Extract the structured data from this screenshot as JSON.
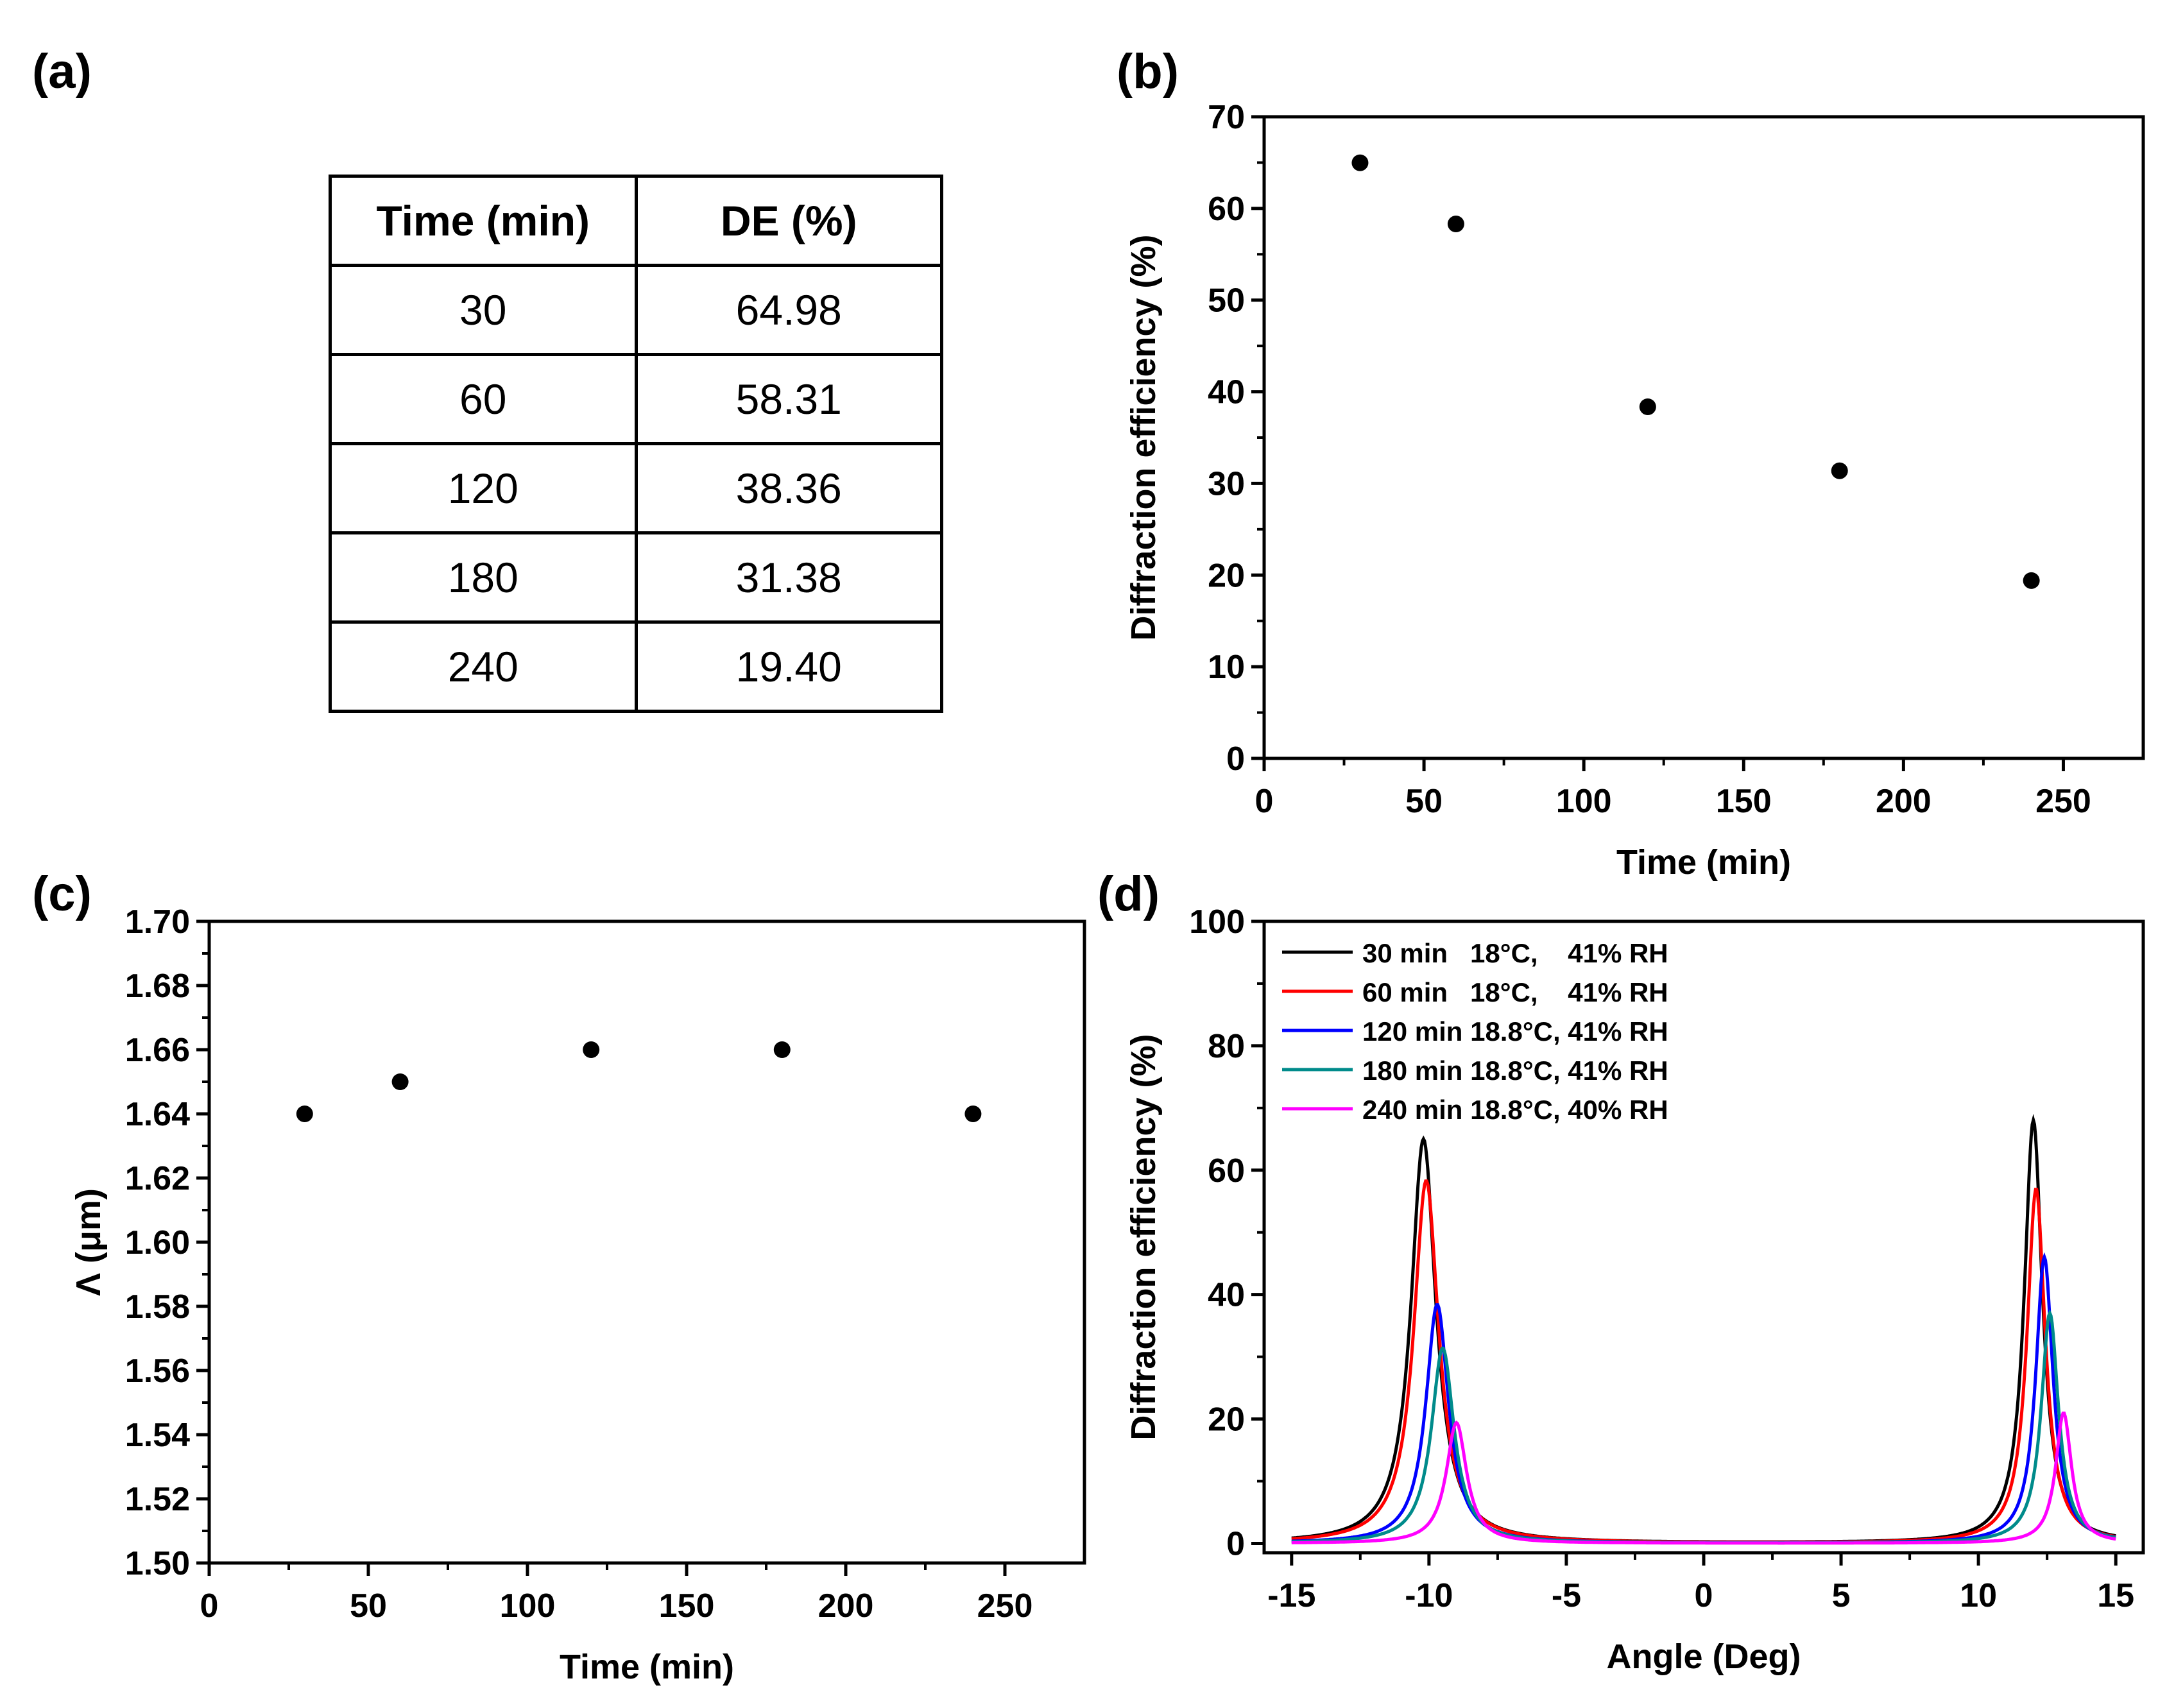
{
  "panel_labels": {
    "a": "(a)",
    "b": "(b)",
    "c": "(c)",
    "d": "(d)"
  },
  "table": {
    "headers": [
      "Time (min)",
      "DE (%)"
    ],
    "rows": [
      [
        "30",
        "64.98"
      ],
      [
        "60",
        "58.31"
      ],
      [
        "120",
        "38.36"
      ],
      [
        "180",
        "31.38"
      ],
      [
        "240",
        "19.40"
      ]
    ]
  },
  "chart_data": [
    {
      "panel": "(b)",
      "type": "scatter",
      "title": "",
      "xlabel": "Time (min)",
      "ylabel": "Diffraction efficiency (%)",
      "xlim": [
        0,
        275
      ],
      "ylim": [
        0,
        70
      ],
      "xticks": [
        0,
        50,
        100,
        150,
        200,
        250
      ],
      "yticks": [
        0,
        10,
        20,
        30,
        40,
        50,
        60,
        70
      ],
      "x": [
        30,
        60,
        120,
        180,
        240
      ],
      "y": [
        64.98,
        58.31,
        38.36,
        31.38,
        19.4
      ],
      "marker_color": "#000000"
    },
    {
      "panel": "(c)",
      "type": "scatter",
      "title": "",
      "xlabel": "Time (min)",
      "ylabel": "Λ (μm)",
      "xlim": [
        0,
        275
      ],
      "ylim": [
        1.5,
        1.7
      ],
      "xticks": [
        0,
        50,
        100,
        150,
        200,
        250
      ],
      "yticks": [
        "1.50",
        "1.52",
        "1.54",
        "1.56",
        "1.58",
        "1.60",
        "1.62",
        "1.64",
        "1.66",
        "1.68",
        "1.70"
      ],
      "x": [
        30,
        60,
        120,
        180,
        240
      ],
      "y": [
        1.64,
        1.65,
        1.66,
        1.66,
        1.64
      ],
      "marker_color": "#000000"
    },
    {
      "panel": "(d)",
      "type": "line",
      "title": "",
      "xlabel": "Angle (Deg)",
      "ylabel": "Diffraction efficiency (%)",
      "xlim": [
        -16,
        16
      ],
      "ylim": [
        -1.5,
        100
      ],
      "xticks": [
        -15,
        -10,
        -5,
        0,
        5,
        10,
        15
      ],
      "yticks": [
        0,
        20,
        40,
        60,
        80,
        100
      ],
      "legend_position": "top-left",
      "series": [
        {
          "name": "30 min   18°C,    41% RH",
          "color": "#000000",
          "peak1": {
            "x": -10.2,
            "y": 65.0,
            "width": 0.55
          },
          "peak2": {
            "x": 12.0,
            "y": 68.0,
            "width": 0.4
          }
        },
        {
          "name": "60 min   18°C,    41% RH",
          "color": "#ff0000",
          "peak1": {
            "x": -10.1,
            "y": 58.3,
            "width": 0.55
          },
          "peak2": {
            "x": 12.1,
            "y": 57.0,
            "width": 0.4
          }
        },
        {
          "name": "120 min 18.8°C, 41% RH",
          "color": "#0000ff",
          "peak1": {
            "x": -9.7,
            "y": 38.4,
            "width": 0.5
          },
          "peak2": {
            "x": 12.4,
            "y": 46.0,
            "width": 0.38
          }
        },
        {
          "name": "180 min 18.8°C, 41% RH",
          "color": "#008b8b",
          "peak1": {
            "x": -9.5,
            "y": 31.4,
            "width": 0.5
          },
          "peak2": {
            "x": 12.6,
            "y": 37.0,
            "width": 0.38
          }
        },
        {
          "name": "240 min 18.8°C, 40% RH",
          "color": "#ff00ff",
          "peak1": {
            "x": -9.0,
            "y": 19.4,
            "width": 0.45
          },
          "peak2": {
            "x": 13.1,
            "y": 21.0,
            "width": 0.35
          }
        }
      ]
    }
  ]
}
